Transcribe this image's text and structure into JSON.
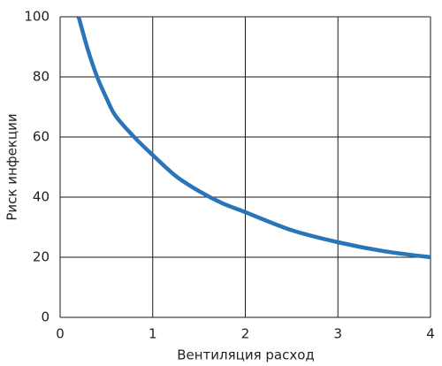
{
  "chart_data": {
    "type": "line",
    "x_label": "Вентиляция расход",
    "y_label": "Риск инфекции",
    "series": [
      {
        "color": "#2a74b9",
        "x": [
          0.2,
          0.3,
          0.4,
          0.5,
          0.6,
          0.8,
          1,
          1.25,
          1.5,
          1.75,
          2,
          2.5,
          3,
          3.5,
          4
        ],
        "values": [
          100,
          89,
          80,
          73,
          67,
          60,
          54,
          47,
          42,
          38,
          35,
          29,
          25,
          22,
          20
        ]
      }
    ],
    "xlim": [
      0,
      4
    ],
    "xticks": [
      0,
      1,
      2,
      3,
      4
    ],
    "ylim": [
      0,
      100
    ],
    "yticks": [
      0,
      20,
      40,
      60,
      80,
      100
    ],
    "grid": true
  }
}
